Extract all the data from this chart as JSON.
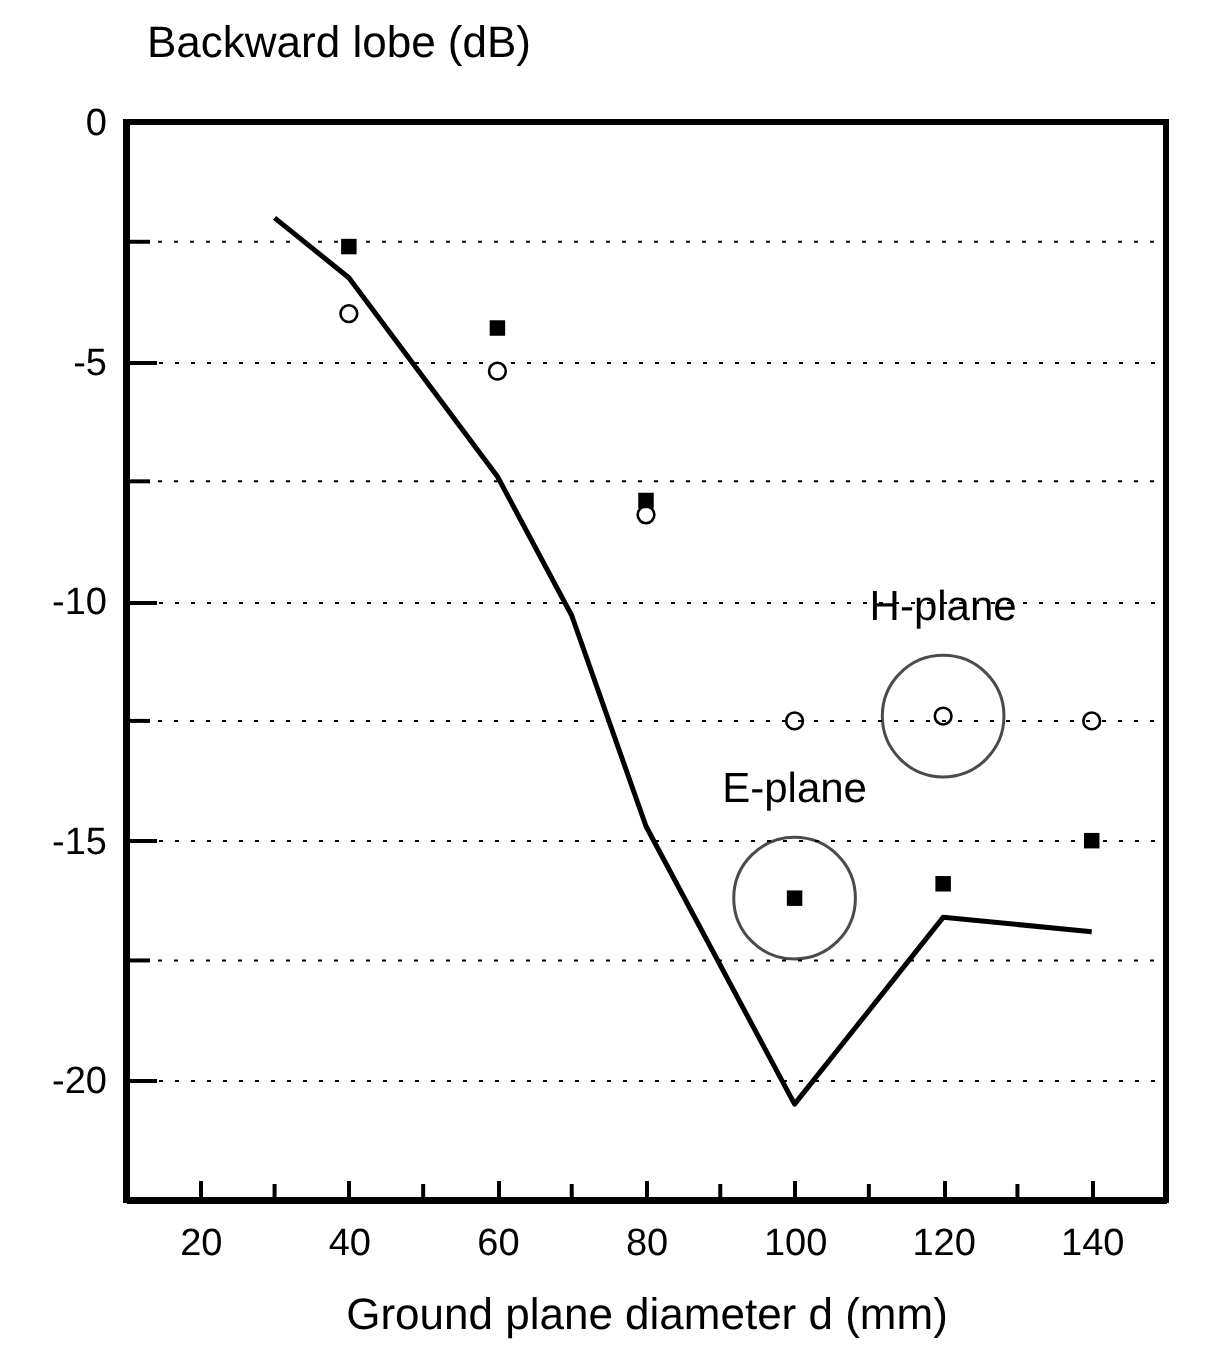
{
  "chart_data": {
    "type": "line",
    "xlabel": "Ground plane diameter d (mm)",
    "ylabel": "Backward lobe (dB)",
    "xlim": [
      10,
      150
    ],
    "xticks": [
      {
        "value": 10,
        "label": null
      },
      20,
      {
        "value": 30,
        "label": null
      },
      40,
      {
        "value": 50,
        "label": null
      },
      60,
      {
        "value": 70,
        "label": null
      },
      80,
      {
        "value": 90,
        "label": null
      },
      100,
      {
        "value": 110,
        "label": null
      },
      120,
      {
        "value": 130,
        "label": null
      },
      140,
      {
        "value": 150,
        "label": null
      }
    ],
    "ylim": [
      -22.5,
      0
    ],
    "yticks": [
      0,
      {
        "value": -2.5,
        "label": null
      },
      -5,
      {
        "value": -7.5,
        "label": null
      },
      -10,
      {
        "value": -12.5,
        "label": null
      },
      -15,
      {
        "value": -17.5,
        "label": null
      },
      -20
    ],
    "grid": "y",
    "series": [
      {
        "color": "#000000",
        "marker": "none",
        "line_style": "solid",
        "x": [
          30,
          40,
          60,
          70,
          80,
          100,
          120,
          140
        ],
        "values": [
          -2.0,
          -3.25,
          -7.4,
          -10.3,
          -14.7,
          -20.5,
          -16.6,
          -16.9
        ]
      },
      {
        "type": "scatter",
        "color": "#000000",
        "marker": "square",
        "x": [
          40,
          60,
          80,
          100,
          120,
          140
        ],
        "values": [
          -2.6,
          -4.3,
          -7.9,
          -16.2,
          -15.9,
          -15.0
        ]
      },
      {
        "type": "scatter",
        "color": "#000000",
        "marker": "circle",
        "x": [
          40,
          60,
          80,
          100,
          120,
          140
        ],
        "values": [
          -4.0,
          -5.2,
          -8.2,
          -12.5,
          -12.4,
          -12.5
        ]
      }
    ],
    "annotations": [
      {
        "text": "E-plane",
        "x": 100,
        "y": -16.2
      },
      {
        "text": "H-plane",
        "x": 120,
        "y": -12.4
      }
    ]
  }
}
